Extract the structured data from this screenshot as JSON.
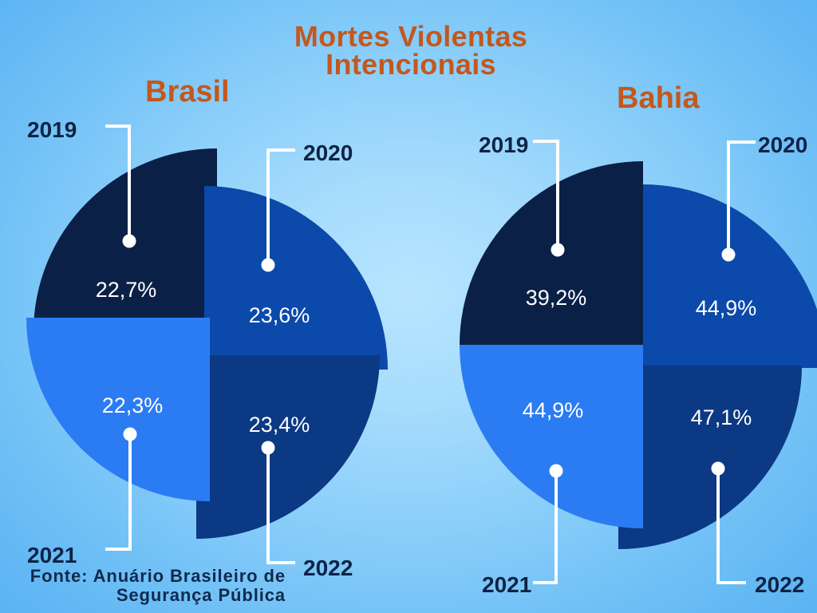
{
  "title": "Mortes Violentas Intencionais",
  "source": "Fonte: Anuário Brasileiro de Segurança Pública",
  "theme": {
    "title_color": "#c3581c",
    "label_color": "#0e2346",
    "value_color": "#ffffff",
    "leader_color": "#ffffff",
    "source_color": "#0f2a4d"
  },
  "chart_data": [
    {
      "type": "pie",
      "title": "Brasil",
      "categories": [
        "2019",
        "2020",
        "2021",
        "2022"
      ],
      "values": [
        22.7,
        23.6,
        22.3,
        23.4
      ],
      "labels": [
        "22,7%",
        "23,6%",
        "22,3%",
        "23,4%"
      ],
      "colors": [
        "#0b2046",
        "#0b4aaa",
        "#2b7cf3",
        "#0b3983"
      ]
    },
    {
      "type": "pie",
      "title": "Bahia",
      "categories": [
        "2019",
        "2020",
        "2021",
        "2022"
      ],
      "values": [
        39.2,
        44.9,
        44.9,
        47.1
      ],
      "labels": [
        "39,2%",
        "44,9%",
        "44,9%",
        "47,1%"
      ],
      "colors": [
        "#0b2046",
        "#0b4aaa",
        "#2b7cf3",
        "#0b3983"
      ]
    }
  ]
}
